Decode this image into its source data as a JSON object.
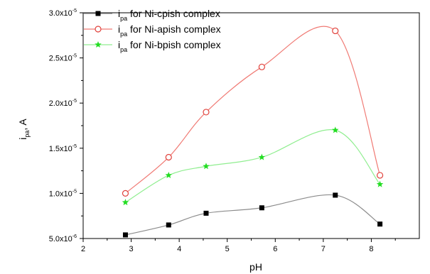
{
  "chart_data": {
    "type": "line",
    "xlabel": "pH",
    "ylabel_main": "i",
    "ylabel_sub": "pa",
    "ylabel_unit": ", A",
    "xlim": [
      2,
      9
    ],
    "ylim": [
      5e-06,
      3e-05
    ],
    "x_ticks": [
      2,
      3,
      4,
      5,
      6,
      7,
      8
    ],
    "y_ticks": [
      {
        "value": 5e-06,
        "mantissa": "5.0x10",
        "exp": "-6"
      },
      {
        "value": 1e-05,
        "mantissa": "1.0x10",
        "exp": "-5"
      },
      {
        "value": 1.5e-05,
        "mantissa": "1.5x10",
        "exp": "-5"
      },
      {
        "value": 2e-05,
        "mantissa": "2.0x10",
        "exp": "-5"
      },
      {
        "value": 2.5e-05,
        "mantissa": "2.5x10",
        "exp": "-5"
      },
      {
        "value": 3e-05,
        "mantissa": "3.0x10",
        "exp": "-5"
      }
    ],
    "grid": false,
    "legend_position": "top-left",
    "series": [
      {
        "legend_main": "i",
        "legend_sub": "pa",
        "legend_rest": " for Ni-cpish complex",
        "marker": "filled-square",
        "color": "#000000",
        "line_color": "#8c8c8c",
        "x": [
          2.88,
          3.78,
          4.56,
          5.72,
          7.25,
          8.18
        ],
        "y": [
          5.4e-06,
          6.5e-06,
          7.8e-06,
          8.4e-06,
          9.8e-06,
          6.6e-06
        ]
      },
      {
        "legend_main": "i",
        "legend_sub": "pa",
        "legend_rest": " for Ni-apish complex",
        "marker": "open-circle",
        "color": "#e0403a",
        "line_color": "#f07a74",
        "x": [
          2.88,
          3.78,
          4.56,
          5.72,
          7.25,
          8.18
        ],
        "y": [
          1e-05,
          1.4e-05,
          1.9e-05,
          2.4e-05,
          2.8e-05,
          1.2e-05
        ]
      },
      {
        "legend_main": "i",
        "legend_sub": "pa",
        "legend_rest": " for Ni-bpish complex",
        "marker": "star",
        "color": "#22dd22",
        "line_color": "#90ee90",
        "x": [
          2.88,
          3.78,
          4.56,
          5.72,
          7.25,
          8.18
        ],
        "y": [
          9e-06,
          1.2e-05,
          1.3e-05,
          1.4e-05,
          1.7e-05,
          1.1e-05
        ]
      }
    ]
  }
}
